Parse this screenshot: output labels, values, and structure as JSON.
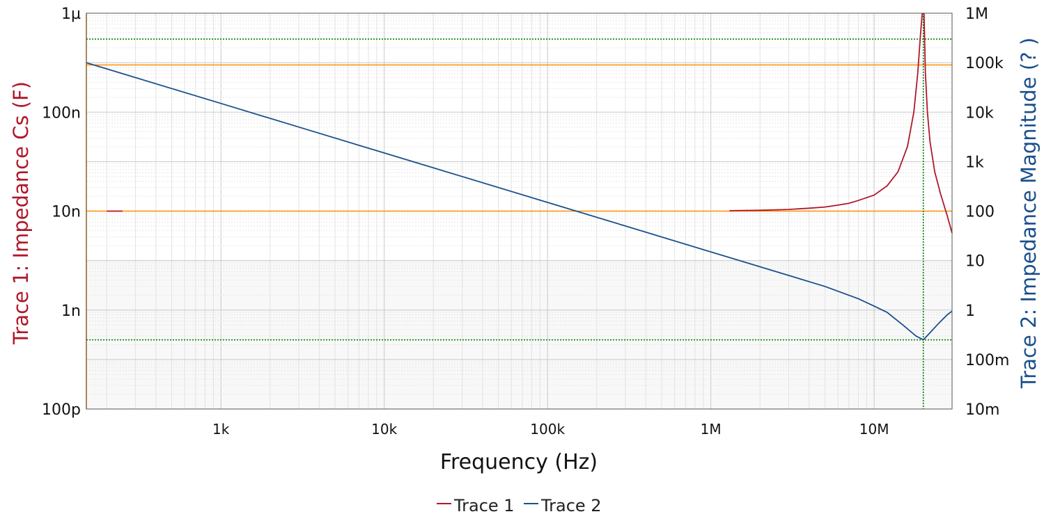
{
  "chart_data": {
    "type": "line",
    "xlabel": "Frequency (Hz)",
    "x_scale": "log",
    "xlim": [
      150,
      30000000
    ],
    "x_ticks": [
      {
        "value": 1000,
        "label": "1k"
      },
      {
        "value": 10000,
        "label": "10k"
      },
      {
        "value": 100000,
        "label": "100k"
      },
      {
        "value": 1000000,
        "label": "1M"
      },
      {
        "value": 10000000,
        "label": "10M"
      }
    ],
    "y_left": {
      "label": "Trace 1: Impedance Cs (F)",
      "scale": "log",
      "lim": [
        1e-10,
        1e-06
      ],
      "ticks": [
        {
          "value": 1e-06,
          "label": "1µ"
        },
        {
          "value": 1e-07,
          "label": "100n"
        },
        {
          "value": 1e-08,
          "label": "10n"
        },
        {
          "value": 1e-09,
          "label": "1n"
        },
        {
          "value": 1e-10,
          "label": "100p"
        }
      ]
    },
    "y_right": {
      "label": "Trace 2: Impedance Magnitude (? )",
      "scale": "log",
      "lim": [
        0.01,
        1000000
      ],
      "ticks": [
        {
          "value": 1000000,
          "label": "1M"
        },
        {
          "value": 100000,
          "label": "100k"
        },
        {
          "value": 10000,
          "label": "10k"
        },
        {
          "value": 1000,
          "label": "1k"
        },
        {
          "value": 100,
          "label": "100"
        },
        {
          "value": 10,
          "label": "10"
        },
        {
          "value": 1,
          "label": "1"
        },
        {
          "value": 0.1,
          "label": "100m"
        },
        {
          "value": 0.01,
          "label": "10m"
        }
      ]
    },
    "grid": true,
    "legend_position": "bottom-center",
    "series": [
      {
        "name": "Trace 1",
        "axis": "left",
        "color": "#b0182a",
        "segments": [
          {
            "x": [
              200,
              250
            ],
            "y": [
              1e-08,
              1e-08
            ]
          },
          {
            "x": [
              1300000,
              2000000,
              3000000,
              4000000,
              5000000,
              6000000,
              7000000,
              8000000,
              10000000,
              12000000,
              14000000,
              16000000,
              17500000,
              18500000,
              19200000,
              19700000
            ],
            "y": [
              1.01e-08,
              1.02e-08,
              1.04e-08,
              1.07e-08,
              1.1e-08,
              1.15e-08,
              1.2e-08,
              1.28e-08,
              1.45e-08,
              1.8e-08,
              2.5e-08,
              4.5e-08,
              1e-07,
              2.5e-07,
              6e-07,
              1e-06
            ]
          },
          {
            "x": [
              20200000,
              20600000,
              21200000,
              22000000,
              23500000,
              25500000,
              28000000,
              30000000
            ],
            "y": [
              1e-06,
              2.5e-07,
              1e-07,
              5e-08,
              2.5e-08,
              1.5e-08,
              9e-09,
              6e-09
            ]
          }
        ]
      },
      {
        "name": "Trace 2",
        "axis": "right",
        "color": "#1a4f8c",
        "x": [
          150,
          200,
          500,
          1000,
          3000,
          10000,
          30000,
          100000,
          300000,
          1000000,
          3000000,
          5000000,
          8000000,
          10000000,
          12000000,
          15000000,
          18000000,
          20000000,
          22000000,
          25000000,
          28000000,
          30000000
        ],
        "y": [
          100000,
          75000,
          30000,
          15000,
          5000,
          1500,
          500,
          150,
          50,
          15,
          5,
          3,
          1.7,
          1.2,
          0.9,
          0.5,
          0.3,
          0.25,
          0.35,
          0.55,
          0.8,
          0.95
        ]
      }
    ],
    "reference_lines": [
      {
        "axis": "left",
        "value": 3e-07,
        "color": "#ff8c00",
        "style": "solid"
      },
      {
        "axis": "left",
        "value": 1e-08,
        "color": "#ff8c00",
        "style": "solid"
      },
      {
        "axis": "x",
        "value": 150,
        "color": "#ff8c00",
        "style": "solid"
      },
      {
        "axis": "right",
        "value": 300000,
        "color": "#008000",
        "style": "dotted"
      },
      {
        "axis": "right",
        "value": 0.25,
        "color": "#008000",
        "style": "dotted"
      },
      {
        "axis": "x",
        "value": 20000000,
        "color": "#008000",
        "style": "dotted"
      }
    ],
    "legend": [
      "Trace 1",
      "Trace 2"
    ]
  }
}
